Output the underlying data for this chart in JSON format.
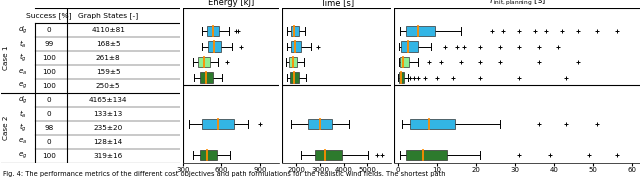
{
  "row_labels": [
    "d_g",
    "t_a",
    "t_g",
    "e_a",
    "e_g"
  ],
  "case1_success": [
    0,
    99,
    100,
    100,
    100
  ],
  "case1_graph": [
    "4110±81",
    "168±5",
    "261±8",
    "159±5",
    "250±5"
  ],
  "case2_success": [
    0,
    0,
    98,
    0,
    100
  ],
  "case2_graph": [
    "4165±134",
    "133±13",
    "235±20",
    "128±14",
    "319±16"
  ],
  "energy_case1": {
    "d_g": {
      "q1": null,
      "med": null,
      "q3": null,
      "whislo": null,
      "whishi": null,
      "fliers": []
    },
    "t_a": {
      "q1": 490,
      "med": 535,
      "q3": 580,
      "whislo": 450,
      "whishi": 660,
      "fliers": [
        710,
        730
      ]
    },
    "t_g": {
      "q1": 495,
      "med": 545,
      "q3": 600,
      "whislo": 445,
      "whishi": 680,
      "fliers": [
        755
      ]
    },
    "e_a": {
      "q1": 415,
      "med": 460,
      "q3": 510,
      "whislo": 375,
      "whishi": 575,
      "fliers": [
        640
      ]
    },
    "e_g": {
      "q1": 430,
      "med": 480,
      "q3": 535,
      "whislo": 385,
      "whishi": 605,
      "fliers": []
    }
  },
  "energy_case2": {
    "d_g": {
      "q1": null,
      "med": null,
      "q3": null,
      "whislo": null,
      "whishi": null,
      "fliers": []
    },
    "t_a": {
      "q1": null,
      "med": null,
      "q3": null,
      "whislo": null,
      "whishi": null,
      "fliers": []
    },
    "t_g": {
      "q1": 450,
      "med": 575,
      "q3": 695,
      "whislo": 345,
      "whishi": 805,
      "fliers": [
        905
      ]
    },
    "e_a": {
      "q1": null,
      "med": null,
      "q3": null,
      "whislo": null,
      "whishi": null,
      "fliers": []
    },
    "e_g": {
      "q1": 435,
      "med": 490,
      "q3": 565,
      "whislo": 375,
      "whishi": 665,
      "fliers": []
    }
  },
  "time_case1": {
    "d_g": {
      "q1": null,
      "med": null,
      "q3": null,
      "whislo": null,
      "whishi": null,
      "fliers": []
    },
    "t_a": {
      "q1": 1750,
      "med": 1890,
      "q3": 2120,
      "whislo": 1590,
      "whishi": 2380,
      "fliers": []
    },
    "t_g": {
      "q1": 1790,
      "med": 1960,
      "q3": 2210,
      "whislo": 1590,
      "whishi": 2620,
      "fliers": [
        2920
      ]
    },
    "e_a": {
      "q1": 1695,
      "med": 1855,
      "q3": 2010,
      "whislo": 1545,
      "whishi": 2310,
      "fliers": []
    },
    "e_g": {
      "q1": 1740,
      "med": 1910,
      "q3": 2110,
      "whislo": 1595,
      "whishi": 2410,
      "fliers": []
    }
  },
  "time_case2": {
    "d_g": {
      "q1": null,
      "med": null,
      "q3": null,
      "whislo": null,
      "whishi": null,
      "fliers": []
    },
    "t_a": {
      "q1": null,
      "med": null,
      "q3": null,
      "whislo": null,
      "whishi": null,
      "fliers": []
    },
    "t_g": {
      "q1": 2490,
      "med": 3010,
      "q3": 3510,
      "whislo": 1790,
      "whishi": 4210,
      "fliers": []
    },
    "e_a": {
      "q1": null,
      "med": null,
      "q3": null,
      "whislo": null,
      "whishi": null,
      "fliers": []
    },
    "e_g": {
      "q1": 2790,
      "med": 3210,
      "q3": 3910,
      "whislo": 2190,
      "whishi": 5010,
      "fliers": [
        5390,
        5610
      ]
    }
  },
  "tinit_case1": {
    "d_g": {
      "q1": null,
      "med": null,
      "q3": null,
      "whislo": null,
      "whishi": null,
      "fliers": []
    },
    "t_a": {
      "q1": 2.0,
      "med": 5.0,
      "q3": 9.5,
      "whislo": 0.5,
      "whishi": 16.0,
      "fliers": [
        24,
        27,
        31,
        35,
        38,
        42,
        46,
        51,
        56
      ]
    },
    "t_g": {
      "q1": 0.8,
      "med": 2.5,
      "q3": 5.0,
      "whislo": 0.2,
      "whishi": 8.5,
      "fliers": [
        12,
        15,
        17,
        21,
        26,
        31,
        36,
        41
      ]
    },
    "e_a": {
      "q1": 0.4,
      "med": 1.3,
      "q3": 2.8,
      "whislo": 0.1,
      "whishi": 5.0,
      "fliers": [
        8,
        11,
        16,
        21,
        26,
        36,
        46
      ]
    },
    "e_g": {
      "q1": 0.15,
      "med": 0.7,
      "q3": 1.4,
      "whislo": 0.05,
      "whishi": 2.4,
      "fliers": [
        3,
        4,
        5,
        7,
        10,
        14,
        21,
        31,
        43
      ]
    }
  },
  "tinit_case2": {
    "d_g": {
      "q1": null,
      "med": null,
      "q3": null,
      "whislo": null,
      "whishi": null,
      "fliers": []
    },
    "t_a": {
      "q1": null,
      "med": null,
      "q3": null,
      "whislo": null,
      "whishi": null,
      "fliers": []
    },
    "t_g": {
      "q1": 3.0,
      "med": 8.0,
      "q3": 14.5,
      "whislo": 1.0,
      "whishi": 26.0,
      "fliers": [
        36,
        43,
        51
      ]
    },
    "e_a": {
      "q1": null,
      "med": null,
      "q3": null,
      "whislo": null,
      "whishi": null,
      "fliers": []
    },
    "e_g": {
      "q1": 2.0,
      "med": 6.5,
      "q3": 12.5,
      "whislo": 0.5,
      "whishi": 21.0,
      "fliers": [
        31,
        39,
        49,
        56
      ]
    }
  },
  "energy_xlim": [
    300,
    1050
  ],
  "energy_xticks": [
    300,
    600,
    900
  ],
  "time_xlim": [
    1400,
    6000
  ],
  "time_xticks": [
    2000,
    3000,
    4000,
    5000
  ],
  "tinit_xlim": [
    -1,
    62
  ],
  "tinit_xticks": [
    0,
    10,
    20,
    30,
    40,
    50,
    60
  ],
  "box_colors_map": {
    "t_a": "#33b5e5",
    "t_g": "#33b5e5",
    "e_a": "#90ee90",
    "e_g": "#2d7a2d"
  },
  "median_color": "#ff8c00",
  "caption": "Fig. 4: The performance metrics of the different cost objectives and path formulations for the realistic wind fields. The shortest path"
}
